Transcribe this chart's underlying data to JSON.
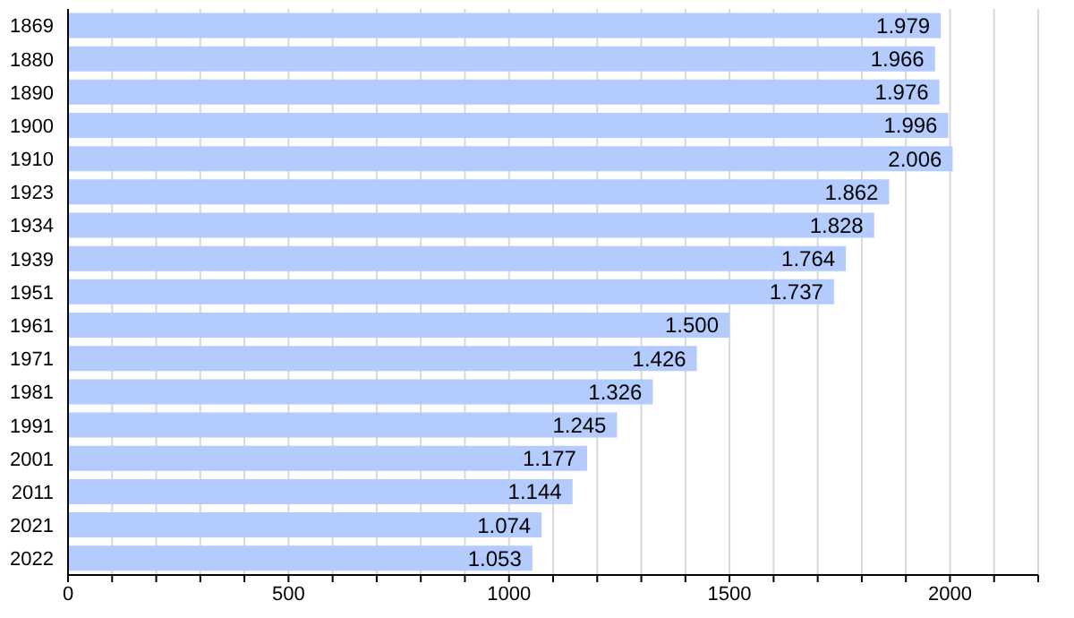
{
  "chart_data": {
    "type": "bar",
    "orientation": "horizontal",
    "categories": [
      "1869",
      "1880",
      "1890",
      "1900",
      "1910",
      "1923",
      "1934",
      "1939",
      "1951",
      "1961",
      "1971",
      "1981",
      "1991",
      "2001",
      "2011",
      "2021",
      "2022"
    ],
    "values": [
      1979,
      1966,
      1976,
      1996,
      2006,
      1862,
      1828,
      1764,
      1737,
      1500,
      1426,
      1326,
      1245,
      1177,
      1144,
      1074,
      1053
    ],
    "value_labels": [
      "1.979",
      "1.966",
      "1.976",
      "1.996",
      "2.006",
      "1.862",
      "1.828",
      "1.764",
      "1.737",
      "1.500",
      "1.426",
      "1.326",
      "1.245",
      "1.177",
      "1.144",
      "1.074",
      "1.053"
    ],
    "color": "#b3cbfd",
    "xlim": [
      0,
      2200
    ],
    "xticks": [
      0,
      {
        "value": 100,
        "label": null
      },
      {
        "value": 200,
        "label": null
      },
      {
        "value": 300,
        "label": null
      },
      {
        "value": 400,
        "label": null
      },
      500,
      {
        "value": 600,
        "label": null
      },
      {
        "value": 700,
        "label": null
      },
      {
        "value": 800,
        "label": null
      },
      {
        "value": 900,
        "label": null
      },
      1000,
      {
        "value": 1100,
        "label": null
      },
      {
        "value": 1200,
        "label": null
      },
      {
        "value": 1300,
        "label": null
      },
      {
        "value": 1400,
        "label": null
      },
      1500,
      {
        "value": 1600,
        "label": null
      },
      {
        "value": 1700,
        "label": null
      },
      {
        "value": 1800,
        "label": null
      },
      {
        "value": 1900,
        "label": null
      },
      2000,
      {
        "value": 2100,
        "label": null
      },
      {
        "value": 2200,
        "label": null
      }
    ],
    "grid": "x"
  }
}
